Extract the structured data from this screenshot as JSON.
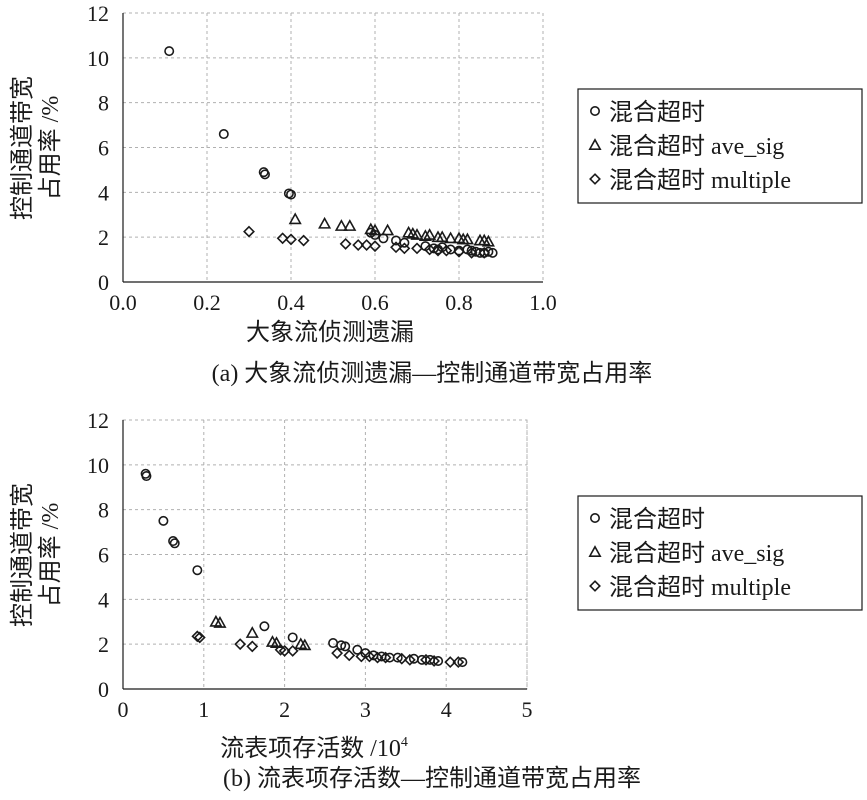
{
  "chart_data": [
    {
      "type": "scatter",
      "caption": "(a) 大象流侦测遗漏—控制通道带宽占用率",
      "xlabel": "大象流侦测遗漏",
      "ylabel_lines": [
        "控制通道带宽",
        "占用率 /%"
      ],
      "xlim": [
        0,
        1.0
      ],
      "ylim": [
        0,
        12
      ],
      "x_ticks": [
        0,
        0.2,
        0.4,
        0.6,
        0.8,
        1.0
      ],
      "x_tick_labels": [
        "0.0",
        "0.2",
        "0.4",
        "0.6",
        "0.8",
        "1.0"
      ],
      "y_ticks": [
        0,
        2,
        4,
        6,
        8,
        10,
        12
      ],
      "y_tick_labels": [
        "0",
        "2",
        "4",
        "6",
        "8",
        "10",
        "12"
      ],
      "legend_position": "right",
      "series": [
        {
          "name": "混合超时",
          "marker": "circle",
          "points": [
            [
              0.11,
              10.3
            ],
            [
              0.24,
              6.6
            ],
            [
              0.335,
              4.9
            ],
            [
              0.338,
              4.8
            ],
            [
              0.395,
              3.95
            ],
            [
              0.4,
              3.9
            ],
            [
              0.59,
              2.2
            ],
            [
              0.6,
              2.1
            ],
            [
              0.62,
              1.95
            ],
            [
              0.65,
              1.85
            ],
            [
              0.67,
              1.75
            ],
            [
              0.72,
              1.6
            ],
            [
              0.74,
              1.5
            ],
            [
              0.75,
              1.45
            ],
            [
              0.76,
              1.55
            ],
            [
              0.78,
              1.45
            ],
            [
              0.8,
              1.4
            ],
            [
              0.82,
              1.45
            ],
            [
              0.83,
              1.4
            ],
            [
              0.84,
              1.35
            ],
            [
              0.85,
              1.3
            ],
            [
              0.86,
              1.3
            ],
            [
              0.87,
              1.35
            ],
            [
              0.88,
              1.3
            ]
          ]
        },
        {
          "name": "混合超时 ave_sig",
          "marker": "triangle",
          "points": [
            [
              0.41,
              2.8
            ],
            [
              0.48,
              2.6
            ],
            [
              0.52,
              2.5
            ],
            [
              0.54,
              2.5
            ],
            [
              0.59,
              2.35
            ],
            [
              0.6,
              2.3
            ],
            [
              0.63,
              2.3
            ],
            [
              0.68,
              2.2
            ],
            [
              0.69,
              2.15
            ],
            [
              0.7,
              2.1
            ],
            [
              0.72,
              2.05
            ],
            [
              0.73,
              2.1
            ],
            [
              0.75,
              2.0
            ],
            [
              0.76,
              2.0
            ],
            [
              0.78,
              1.95
            ],
            [
              0.8,
              1.95
            ],
            [
              0.81,
              1.9
            ],
            [
              0.82,
              1.9
            ],
            [
              0.85,
              1.85
            ],
            [
              0.86,
              1.85
            ],
            [
              0.87,
              1.8
            ]
          ]
        },
        {
          "name": "混合超时 multiple",
          "marker": "diamond",
          "points": [
            [
              0.3,
              2.25
            ],
            [
              0.38,
              1.95
            ],
            [
              0.4,
              1.9
            ],
            [
              0.43,
              1.85
            ],
            [
              0.53,
              1.7
            ],
            [
              0.56,
              1.65
            ],
            [
              0.58,
              1.65
            ],
            [
              0.6,
              1.6
            ],
            [
              0.65,
              1.55
            ],
            [
              0.67,
              1.5
            ],
            [
              0.7,
              1.5
            ],
            [
              0.73,
              1.45
            ],
            [
              0.75,
              1.4
            ],
            [
              0.77,
              1.4
            ],
            [
              0.8,
              1.35
            ],
            [
              0.83,
              1.3
            ],
            [
              0.86,
              1.3
            ]
          ]
        }
      ]
    },
    {
      "type": "scatter",
      "caption": "(b) 流表项存活数—控制通道带宽占用率",
      "xlabel": "流表项存活数 /10",
      "xlabel_superscript": "4",
      "ylabel_lines": [
        "控制通道带宽",
        "占用率 /%"
      ],
      "xlim": [
        0,
        5
      ],
      "ylim": [
        0,
        12
      ],
      "x_ticks": [
        0,
        1,
        2,
        3,
        4,
        5
      ],
      "x_tick_labels": [
        "0",
        "1",
        "2",
        "3",
        "4",
        "5"
      ],
      "y_ticks": [
        0,
        2,
        4,
        6,
        8,
        10,
        12
      ],
      "y_tick_labels": [
        "0",
        "2",
        "4",
        "6",
        "8",
        "10",
        "12"
      ],
      "legend_position": "right",
      "series": [
        {
          "name": "混合超时",
          "marker": "circle",
          "points": [
            [
              0.28,
              9.6
            ],
            [
              0.29,
              9.5
            ],
            [
              0.5,
              7.5
            ],
            [
              0.62,
              6.6
            ],
            [
              0.64,
              6.5
            ],
            [
              0.92,
              5.3
            ],
            [
              1.75,
              2.8
            ],
            [
              2.1,
              2.3
            ],
            [
              2.6,
              2.05
            ],
            [
              2.7,
              1.95
            ],
            [
              2.75,
              1.9
            ],
            [
              2.9,
              1.75
            ],
            [
              3.0,
              1.6
            ],
            [
              3.1,
              1.5
            ],
            [
              3.2,
              1.45
            ],
            [
              3.3,
              1.4
            ],
            [
              3.4,
              1.4
            ],
            [
              3.6,
              1.35
            ],
            [
              3.7,
              1.3
            ],
            [
              3.8,
              1.3
            ],
            [
              3.9,
              1.25
            ],
            [
              4.2,
              1.2
            ]
          ]
        },
        {
          "name": "混合超时 ave_sig",
          "marker": "triangle",
          "points": [
            [
              1.15,
              3.0
            ],
            [
              1.2,
              2.95
            ],
            [
              1.6,
              2.5
            ],
            [
              1.85,
              2.1
            ],
            [
              1.9,
              2.05
            ],
            [
              2.2,
              2.0
            ],
            [
              2.25,
              1.95
            ]
          ]
        },
        {
          "name": "混合超时 multiple",
          "marker": "diamond",
          "points": [
            [
              0.92,
              2.35
            ],
            [
              0.95,
              2.3
            ],
            [
              1.45,
              2.0
            ],
            [
              1.6,
              1.9
            ],
            [
              1.95,
              1.75
            ],
            [
              2.0,
              1.7
            ],
            [
              2.1,
              1.7
            ],
            [
              2.65,
              1.6
            ],
            [
              2.8,
              1.5
            ],
            [
              2.95,
              1.45
            ],
            [
              3.05,
              1.45
            ],
            [
              3.15,
              1.4
            ],
            [
              3.25,
              1.4
            ],
            [
              3.45,
              1.35
            ],
            [
              3.55,
              1.3
            ],
            [
              3.75,
              1.3
            ],
            [
              3.85,
              1.25
            ],
            [
              4.05,
              1.2
            ],
            [
              4.15,
              1.2
            ]
          ]
        }
      ]
    }
  ]
}
